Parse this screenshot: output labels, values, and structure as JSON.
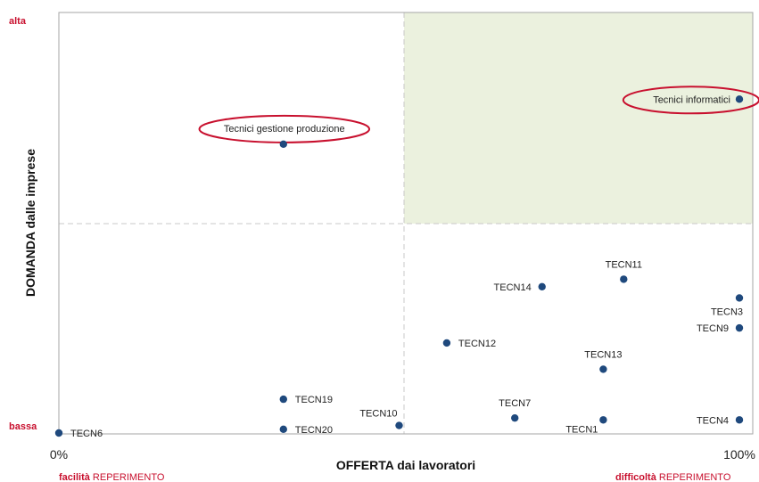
{
  "chart_data": {
    "type": "scatter",
    "xlabel": "OFFERTA dai lavoratori",
    "ylabel": "DOMANDA dalle imprese",
    "x_ticks": {
      "min": "0%",
      "max": "100%"
    },
    "y_ticks": {
      "low": "bassa",
      "high": "alta"
    },
    "x_notes": {
      "left": {
        "bold": "facilità",
        "rest": " REPERIMENTO"
      },
      "right": {
        "bold": "difficoltà",
        "rest": " REPERIMENTO"
      }
    },
    "xlim": [
      0,
      100
    ],
    "ylim": [
      0,
      100
    ],
    "quadrant_divider": {
      "x": 50,
      "y": 50
    },
    "highlight_quadrant": "top-right",
    "colors": {
      "point": "#1f497d",
      "ellipse": "#c8102e",
      "corner_text": "#c8102e",
      "quadrant_fill": "#ebf1de",
      "divider": "#c8c8c8",
      "frame": "#a6a6a6"
    },
    "points": [
      {
        "name": "Tecnici informatici",
        "x": 100,
        "y": 89,
        "highlight": true,
        "label_pos": "left"
      },
      {
        "name": "Tecnici gestione produzione",
        "x": 33,
        "y": 77,
        "highlight": true,
        "label_pos": "above"
      },
      {
        "name": "TECN11",
        "x": 83,
        "y": 41,
        "label_pos": "above"
      },
      {
        "name": "TECN14",
        "x": 71,
        "y": 39,
        "label_pos": "left"
      },
      {
        "name": "TECN3",
        "x": 100,
        "y": 36,
        "label_pos": "below"
      },
      {
        "name": "TECN9",
        "x": 100,
        "y": 28,
        "label_pos": "left"
      },
      {
        "name": "TECN12",
        "x": 57,
        "y": 24,
        "label_pos": "right"
      },
      {
        "name": "TECN13",
        "x": 80,
        "y": 17,
        "label_pos": "above"
      },
      {
        "name": "TECN19",
        "x": 33,
        "y": 9,
        "label_pos": "right"
      },
      {
        "name": "TECN7",
        "x": 67,
        "y": 4,
        "label_pos": "above"
      },
      {
        "name": "TECN1",
        "x": 80,
        "y": 3.5,
        "label_pos": "below-left"
      },
      {
        "name": "TECN4",
        "x": 100,
        "y": 3.5,
        "label_pos": "left"
      },
      {
        "name": "TECN10",
        "x": 50,
        "y": 2,
        "label_pos": "above-left"
      },
      {
        "name": "TECN20",
        "x": 33,
        "y": 1,
        "label_pos": "right"
      },
      {
        "name": "TECN6",
        "x": 0,
        "y": 0,
        "label_pos": "right"
      }
    ]
  }
}
